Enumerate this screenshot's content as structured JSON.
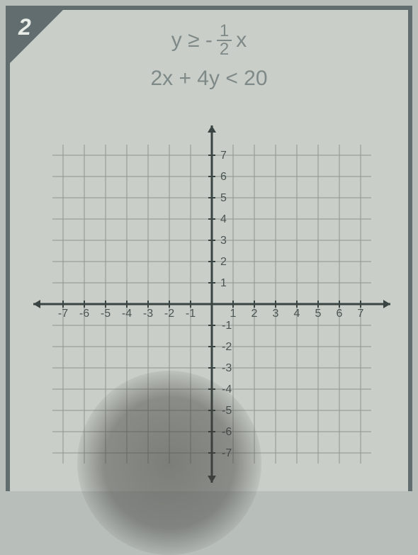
{
  "problem_number": "2",
  "equations": {
    "eq1_left": "y ≥ -",
    "eq1_frac_num": "1",
    "eq1_frac_den": "2",
    "eq1_right": "x",
    "eq2": "2x + 4y < 20"
  },
  "graph": {
    "type": "coordinate-grid",
    "x_range": [
      -8,
      8
    ],
    "y_range": [
      -8,
      8
    ],
    "x_ticks": [
      -7,
      -6,
      -5,
      -4,
      -3,
      -2,
      -1,
      1,
      2,
      3,
      4,
      5,
      6,
      7
    ],
    "y_ticks": [
      -7,
      -6,
      -5,
      -4,
      -3,
      -2,
      -1,
      1,
      2,
      3,
      4,
      5,
      6,
      7
    ],
    "cell_size": 30,
    "grid_color": "#8e9490",
    "axis_color": "#3a4442",
    "background_color": "#c9cec8",
    "label_color": "#4a5452",
    "label_fontsize": 16,
    "arrow_size": 10
  },
  "colors": {
    "frame": "#616d6f",
    "paper": "#c9cec8",
    "outer": "#b8beba",
    "badge_text": "#e8ece6",
    "equation_text": "#7f8a88"
  }
}
